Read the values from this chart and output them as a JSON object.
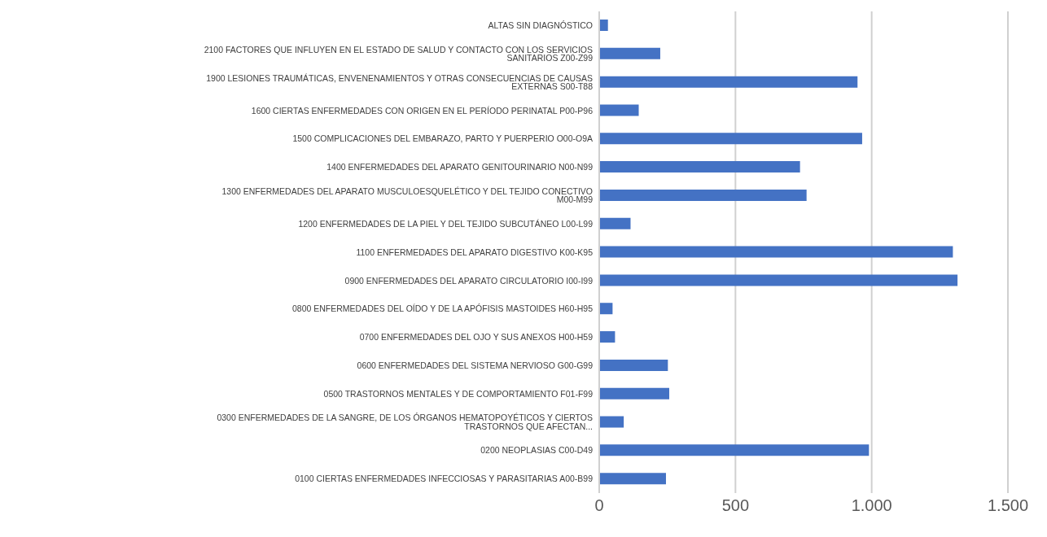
{
  "chart_data": {
    "type": "bar",
    "orientation": "horizontal",
    "categories": [
      "ALTAS SIN DIAGNÓSTICO",
      "2100 FACTORES QUE INFLUYEN EN EL ESTADO DE SALUD Y CONTACTO CON LOS SERVICIOS SANITARIOS Z00-Z99",
      "1900 LESIONES TRAUMÁTICAS, ENVENENAMIENTOS Y OTRAS CONSECUENCIAS DE CAUSAS EXTERNAS S00-T88",
      "1600 CIERTAS ENFERMEDADES CON ORIGEN EN EL PERÍODO PERINATAL P00-P96",
      "1500 COMPLICACIONES DEL EMBARAZO, PARTO Y PUERPERIO O00-O9A",
      "1400 ENFERMEDADES DEL APARATO GENITOURINARIO N00-N99",
      "1300 ENFERMEDADES DEL APARATO MUSCULOESQUELÉTICO Y DEL TEJIDO CONECTIVO M00-M99",
      "1200 ENFERMEDADES DE LA PIEL Y DEL TEJIDO SUBCUTÁNEO L00-L99",
      "1100 ENFERMEDADES DEL APARATO DIGESTIVO K00-K95",
      "0900 ENFERMEDADES DEL APARATO CIRCULATORIO I00-I99",
      "0800 ENFERMEDADES DEL OÍDO Y DE LA APÓFISIS MASTOIDES H60-H95",
      "0700 ENFERMEDADES DEL OJO Y SUS ANEXOS H00-H59",
      "0600 ENFERMEDADES DEL SISTEMA NERVIOSO G00-G99",
      "0500 TRASTORNOS MENTALES Y DE COMPORTAMIENTO F01-F99",
      "0300 ENFERMEDADES DE LA SANGRE, DE LOS ÓRGANOS HEMATOPOYÉTICOS Y CIERTOS TRASTORNOS QUE AFECTAN...",
      "0200 NEOPLASIAS C00-D49",
      "0100 CIERTAS ENFERMEDADES INFECCIOSAS Y PARASITARIAS A00-B99"
    ],
    "values": [
      32,
      224,
      948,
      145,
      965,
      737,
      761,
      115,
      1298,
      1315,
      49,
      58,
      252,
      257,
      90,
      990,
      245
    ],
    "color": "#4472c4",
    "xlim": [
      0,
      1500
    ],
    "xticks": [
      0,
      500,
      {
        "value": 1000,
        "label": "1.000"
      },
      {
        "value": 1500,
        "label": "1.500"
      }
    ],
    "grid": "x"
  }
}
